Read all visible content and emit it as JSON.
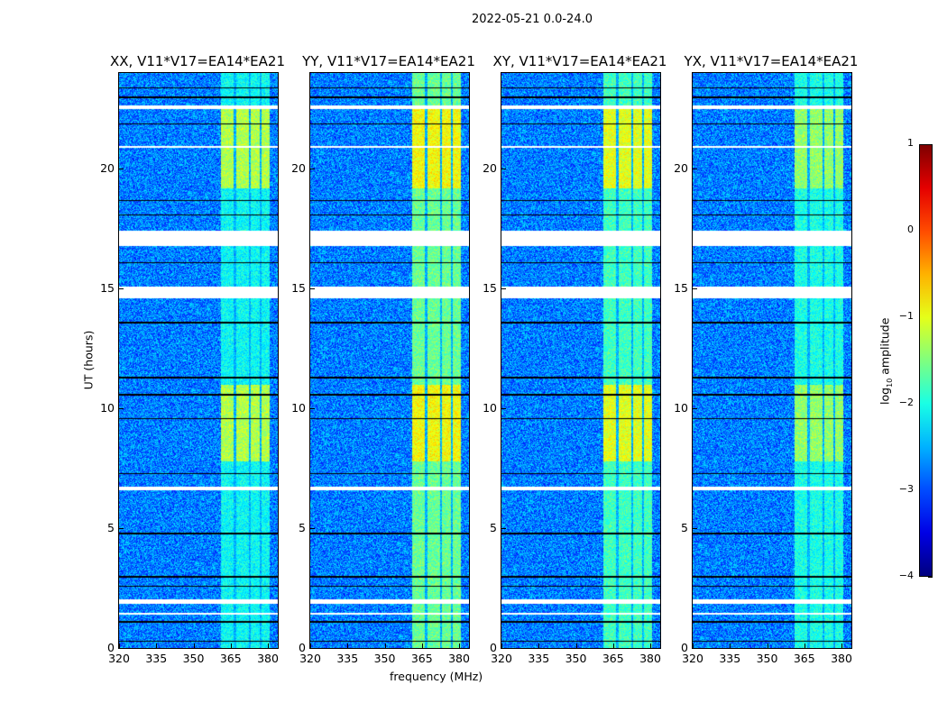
{
  "chart_data": {
    "type": "heatmap",
    "title": "2022-05-21 0.0-24.0",
    "xlabel": "frequency (MHz)",
    "ylabel": "UT (hours)",
    "xlim": [
      320,
      384
    ],
    "ylim": [
      0,
      24
    ],
    "xticks": [
      "320",
      "335",
      "350",
      "365",
      "380"
    ],
    "xtick_values": [
      320,
      335,
      350,
      365,
      380
    ],
    "yticks": [
      "0",
      "5",
      "10",
      "15",
      "20"
    ],
    "ytick_values": [
      0,
      5,
      10,
      15,
      20
    ],
    "panels": [
      {
        "title": "XX, V11*V17=EA14*EA21",
        "rfi_base": -2.1,
        "rfi_peak": -1.25
      },
      {
        "title": "YY, V11*V17=EA14*EA21",
        "rfi_base": -1.6,
        "rfi_peak": -0.9
      },
      {
        "title": "XY, V11*V17=EA14*EA21",
        "rfi_base": -1.8,
        "rfi_peak": -1.0
      },
      {
        "title": "YX, V11*V17=EA14*EA21",
        "rfi_base": -2.0,
        "rfi_peak": -1.4
      }
    ],
    "background_level": -2.75,
    "rfi_band_mhz": [
      361,
      380.5
    ],
    "rfi_gaps_mhz": [
      366.5,
      372.5,
      377
    ],
    "bright_hours": [
      [
        7.8,
        11
      ],
      [
        19.2,
        22.5
      ]
    ],
    "flagged_hours": [
      [
        22.5,
        22.65
      ],
      [
        20.9,
        20.97
      ],
      [
        16.8,
        17.45
      ],
      [
        14.6,
        15.1
      ],
      [
        6.6,
        6.75
      ],
      [
        1.88,
        2.05
      ],
      [
        1.4,
        1.48
      ]
    ],
    "dropout_hours": [
      23.4,
      23.0,
      21.9,
      18.7,
      18.1,
      16.1,
      13.6,
      11.3,
      10.6,
      9.6,
      7.3,
      4.8,
      3.0,
      2.6,
      1.1,
      0.3
    ],
    "colorbar": {
      "label_prefix": "log",
      "label_sub": "10",
      "label_suffix": " amplitude",
      "range": [
        -4,
        1
      ],
      "ticks": [
        "1",
        "0",
        "−1",
        "−2",
        "−3",
        "−4"
      ],
      "tick_values": [
        1,
        0,
        -1,
        -2,
        -3,
        -4
      ]
    }
  }
}
